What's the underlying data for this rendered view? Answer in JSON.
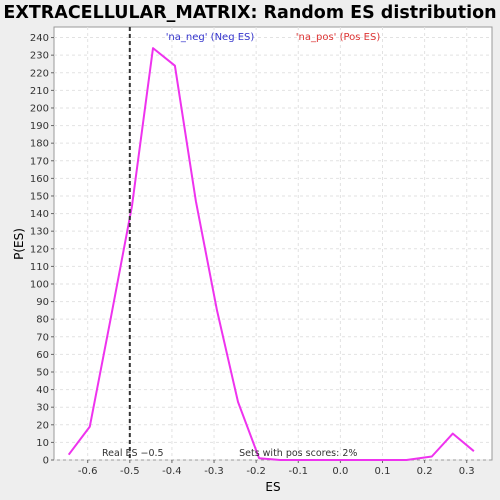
{
  "chart_data": {
    "type": "line",
    "title": "EXTRACELLULAR_MATRIX: Random ES distribution",
    "xlabel": "ES",
    "ylabel": "P(ES)",
    "xlim": [
      -0.68,
      0.36
    ],
    "ylim": [
      0,
      246
    ],
    "x_ticks": [
      -0.6,
      -0.5,
      -0.4,
      -0.3,
      -0.2,
      -0.1,
      0.0,
      0.1,
      0.2,
      0.3
    ],
    "x_tick_labels": [
      "-0.6",
      "-0.5",
      "-0.4",
      "-0.3",
      "-0.2",
      "-0.1",
      "0.0",
      "0.1",
      "0.2",
      "0.3"
    ],
    "y_ticks": [
      0,
      10,
      20,
      30,
      40,
      50,
      60,
      70,
      80,
      90,
      100,
      110,
      120,
      130,
      140,
      150,
      160,
      170,
      180,
      190,
      200,
      210,
      220,
      230,
      240
    ],
    "grid": true,
    "legend": [
      {
        "label": "'na_neg' (Neg ES)",
        "color": "#3333cc"
      },
      {
        "label": "'na_pos' (Pos ES)",
        "color": "#dd3333"
      }
    ],
    "series": [
      {
        "color": "#ee33ee",
        "x": [
          -0.645,
          -0.595,
          -0.545,
          -0.495,
          -0.445,
          -0.393,
          -0.343,
          -0.293,
          -0.243,
          -0.193,
          -0.143,
          -0.093,
          -0.043,
          0.007,
          0.057,
          0.107,
          0.157,
          0.217,
          0.267,
          0.317
        ],
        "y": [
          3,
          19,
          81,
          144,
          234,
          224,
          147,
          85,
          33,
          1,
          0,
          0,
          0,
          0,
          0,
          0,
          0,
          2,
          15,
          5
        ]
      }
    ],
    "annotations": {
      "real_es_line_x": -0.5,
      "real_es_label": "Real ES −0.5",
      "pos_scores_label": "Sets with pos scores: 2%"
    }
  }
}
